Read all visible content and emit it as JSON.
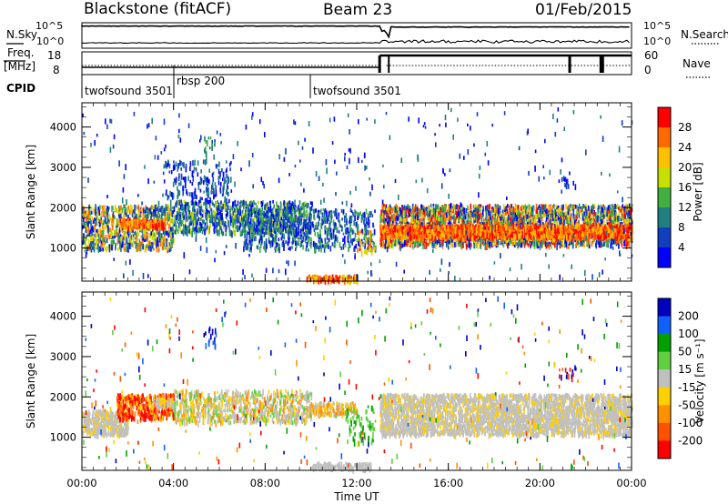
{
  "header": {
    "station": "Blackstone (fitACF)",
    "beam": "Beam 23",
    "date": "01/Feb/2015"
  },
  "status_panels": {
    "nsky_label": "N.Sky",
    "nsearch_label": "N.Search",
    "noise_ticks": [
      "10^5",
      "10^0"
    ],
    "freq_label": "Freq.",
    "freq_unit": "[MHz]",
    "freq_ticks": [
      "18",
      "8"
    ],
    "nave_label": "Nave",
    "nave_ticks": [
      "60",
      "0"
    ],
    "cpid_label": "CPID",
    "cpid_segments": [
      {
        "name": "twofsound 3501",
        "start_hour": 0
      },
      {
        "name": "rbsp 200",
        "start_hour": 4.0
      },
      {
        "name": "twofsound 3501",
        "start_hour": 10.0
      }
    ]
  },
  "chart_data": [
    {
      "type": "heatmap",
      "title": "Power",
      "ylabel": "Slant Range [km]",
      "xlabel": "Time UT",
      "x_ticks": [
        "00:00",
        "04:00",
        "08:00",
        "12:00",
        "16:00",
        "20:00",
        "00:00"
      ],
      "y_ticks": [
        "1000",
        "2000",
        "3000",
        "4000"
      ],
      "ylim": [
        180,
        4600
      ],
      "xlim_hours": [
        0,
        24
      ],
      "colorbar_label": "Power [dB]",
      "colorbar_ticks": [
        "28",
        "24",
        "20",
        "16",
        "12",
        "8",
        "4"
      ],
      "colorbar_colors": [
        "#ff0000",
        "#ff6a00",
        "#ffc000",
        "#c8e000",
        "#40b040",
        "#208080",
        "#1040c0",
        "#0000ff"
      ]
    },
    {
      "type": "heatmap",
      "title": "Velocity",
      "ylabel": "Slant Range [km]",
      "xlabel": "Time UT",
      "x_ticks": [
        "00:00",
        "04:00",
        "08:00",
        "12:00",
        "16:00",
        "20:00",
        "00:00"
      ],
      "y_ticks": [
        "1000",
        "2000",
        "3000",
        "4000"
      ],
      "ylim": [
        180,
        4600
      ],
      "xlim_hours": [
        0,
        24
      ],
      "colorbar_label": "Velocity [m s⁻¹]",
      "colorbar_ticks": [
        "200",
        "100",
        "50",
        "15",
        "-15",
        "-50",
        "-100",
        "-200"
      ],
      "colorbar_colors": [
        "#0000c0",
        "#1060ff",
        "#00a000",
        "#60d040",
        "#c0c0c0",
        "#ffd000",
        "#ff9000",
        "#ff5000",
        "#ff0000"
      ]
    }
  ]
}
